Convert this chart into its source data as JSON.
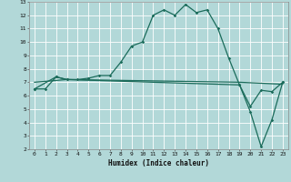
{
  "xlabel": "Humidex (Indice chaleur)",
  "bg_color": "#b2d8d8",
  "grid_color": "#ffffff",
  "line_color": "#1a6b5a",
  "xlim": [
    -0.5,
    23.5
  ],
  "ylim": [
    2,
    13
  ],
  "xticks": [
    0,
    1,
    2,
    3,
    4,
    5,
    6,
    7,
    8,
    9,
    10,
    11,
    12,
    13,
    14,
    15,
    16,
    17,
    18,
    19,
    20,
    21,
    22,
    23
  ],
  "yticks": [
    2,
    3,
    4,
    5,
    6,
    7,
    8,
    9,
    10,
    11,
    12,
    13
  ],
  "series1_x": [
    0,
    1,
    2,
    3,
    4,
    5,
    6,
    7,
    8,
    9,
    10,
    11,
    12,
    13,
    14,
    15,
    16,
    17,
    18,
    19,
    20,
    21,
    22,
    23
  ],
  "series1_y": [
    6.5,
    6.5,
    7.4,
    7.2,
    7.2,
    7.3,
    7.5,
    7.5,
    8.5,
    9.7,
    10.0,
    12.0,
    12.4,
    12.0,
    12.8,
    12.2,
    12.4,
    11.0,
    8.8,
    6.8,
    4.8,
    2.2,
    4.2,
    7.0
  ],
  "series2_x": [
    0,
    2,
    3,
    19,
    20,
    21,
    22,
    23
  ],
  "series2_y": [
    6.5,
    7.4,
    7.2,
    6.8,
    5.2,
    6.4,
    6.3,
    7.0
  ],
  "series3_x": [
    0,
    3,
    19,
    23
  ],
  "series3_y": [
    7.0,
    7.2,
    7.0,
    6.85
  ]
}
